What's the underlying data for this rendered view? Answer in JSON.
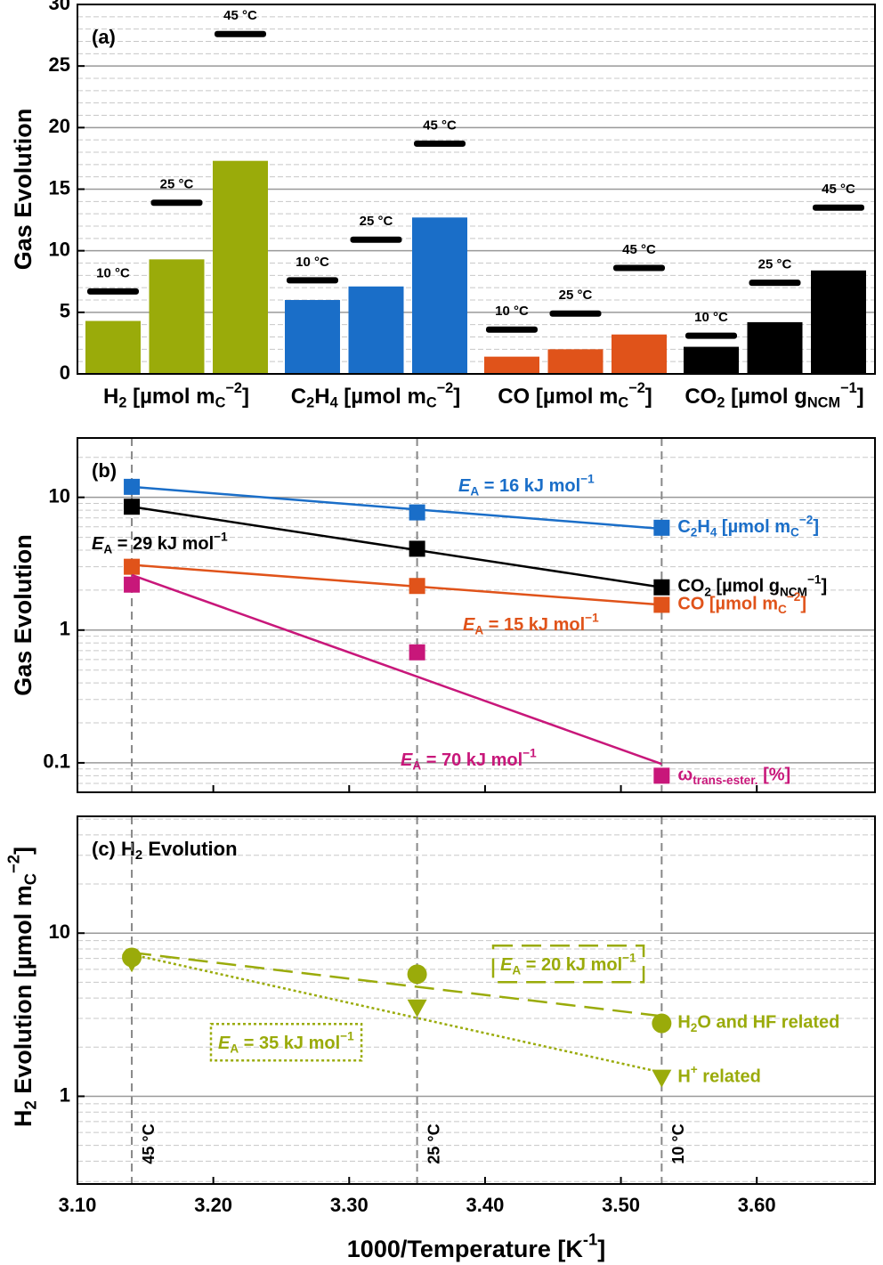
{
  "chart_data": [
    {
      "type": "bar",
      "panel_label": [
        {
          "t": "(a)"
        }
      ],
      "y_label": [
        {
          "t": "Gas Evolution"
        }
      ],
      "ylim": [
        0,
        30
      ],
      "yticks": [
        0,
        5,
        10,
        15,
        20,
        25,
        30
      ],
      "yminor": [
        1,
        2,
        3,
        4,
        6,
        7,
        8,
        9,
        11,
        12,
        13,
        14,
        16,
        17,
        18,
        19,
        21,
        22,
        23,
        24,
        26,
        27,
        28,
        29
      ],
      "grid": true,
      "marker_color": "#000000",
      "groups": [
        {
          "label": [
            {
              "t": "H"
            },
            {
              "t": "2",
              "s": "sub"
            },
            {
              "t": " [µmol m"
            },
            {
              "t": "C",
              "s": "sub"
            },
            {
              "t": "−2",
              "s": "sup"
            },
            {
              "t": "]"
            }
          ],
          "color": "#9aab0a",
          "values": [
            4.3,
            9.3,
            17.3
          ],
          "marker_values": [
            6.7,
            13.9,
            27.6
          ],
          "marker_labels": [
            "10 °C",
            "25 °C",
            "45 °C"
          ]
        },
        {
          "label": [
            {
              "t": "C"
            },
            {
              "t": "2",
              "s": "sub"
            },
            {
              "t": "H"
            },
            {
              "t": "4",
              "s": "sub"
            },
            {
              "t": " [µmol m"
            },
            {
              "t": "C",
              "s": "sub"
            },
            {
              "t": "−2",
              "s": "sup"
            },
            {
              "t": "]"
            }
          ],
          "color": "#1a6ec8",
          "values": [
            6.0,
            7.1,
            12.7
          ],
          "marker_values": [
            7.6,
            10.9,
            18.7
          ],
          "marker_labels": [
            "10 °C",
            "25 °C",
            "45 °C"
          ]
        },
        {
          "label": [
            {
              "t": "CO [µmol m"
            },
            {
              "t": "C",
              "s": "sub"
            },
            {
              "t": "−2",
              "s": "sup"
            },
            {
              "t": "]"
            }
          ],
          "color": "#e0531a",
          "values": [
            1.4,
            2.0,
            3.2
          ],
          "marker_values": [
            3.6,
            4.9,
            8.6
          ],
          "marker_labels": [
            "10 °C",
            "25 °C",
            "45 °C"
          ]
        },
        {
          "label": [
            {
              "t": "CO"
            },
            {
              "t": "2",
              "s": "sub"
            },
            {
              "t": " [µmol g"
            },
            {
              "t": "NCM",
              "s": "sub"
            },
            {
              "t": "−1",
              "s": "sup"
            },
            {
              "t": "]"
            }
          ],
          "color": "#000000",
          "values": [
            2.2,
            4.2,
            8.4
          ],
          "marker_values": [
            3.1,
            7.4,
            13.5
          ],
          "marker_labels": [
            "10 °C",
            "25 °C",
            "45 °C"
          ]
        }
      ]
    },
    {
      "type": "line",
      "panel_label": [
        {
          "t": "(b)"
        }
      ],
      "y_label": [
        {
          "t": "Gas Evolution"
        }
      ],
      "log_scale": true,
      "ylim": [
        0.06,
        28
      ],
      "yticks": [
        0.1,
        1,
        10
      ],
      "yminor": [
        0.06,
        0.07,
        0.08,
        0.09,
        0.2,
        0.3,
        0.4,
        0.5,
        0.6,
        0.7,
        0.8,
        0.9,
        2,
        3,
        4,
        5,
        6,
        7,
        8,
        9,
        20
      ],
      "xlim": [
        3.1,
        3.687
      ],
      "xticks": [
        3.1,
        3.2,
        3.3,
        3.4,
        3.5,
        3.6
      ],
      "x": [
        3.14,
        3.35,
        3.53
      ],
      "grid": true,
      "marker": "square",
      "series": [
        {
          "name": [
            {
              "t": "C"
            },
            {
              "t": "2",
              "s": "sub"
            },
            {
              "t": "H"
            },
            {
              "t": "4",
              "s": "sub"
            },
            {
              "t": " [µmol m"
            },
            {
              "t": "C",
              "s": "sub"
            },
            {
              "t": "−2",
              "s": "sup"
            },
            {
              "t": "]"
            }
          ],
          "color": "#1a6ec8",
          "values": [
            12,
            7.7,
            5.9
          ],
          "fit": [
            12,
            8.1,
            5.8
          ],
          "annotation": [
            {
              "t": "E",
              "s": "i"
            },
            {
              "t": "A",
              "s": "sub"
            },
            {
              "t": " = 16 kJ mol"
            },
            {
              "t": "−1",
              "s": "sup"
            }
          ]
        },
        {
          "name": [
            {
              "t": "CO"
            },
            {
              "t": "2",
              "s": "sub"
            },
            {
              "t": " [µmol g"
            },
            {
              "t": "NCM",
              "s": "sub"
            },
            {
              "t": "−1",
              "s": "sup"
            },
            {
              "t": "]"
            }
          ],
          "color": "#000000",
          "values": [
            8.5,
            4.1,
            2.1
          ],
          "fit": [
            8.5,
            4.0,
            2.1
          ],
          "annotation": [
            {
              "t": "E",
              "s": "i"
            },
            {
              "t": "A",
              "s": "sub"
            },
            {
              "t": " = 29 kJ mol"
            },
            {
              "t": "−1",
              "s": "sup"
            }
          ]
        },
        {
          "name": [
            {
              "t": "CO [µmol m"
            },
            {
              "t": "C",
              "s": "sub"
            },
            {
              "t": "−2",
              "s": "sup"
            },
            {
              "t": "]"
            }
          ],
          "color": "#e0531a",
          "values": [
            3.0,
            2.15,
            1.55
          ],
          "fit": [
            3.1,
            2.13,
            1.55
          ],
          "annotation": [
            {
              "t": "E",
              "s": "i"
            },
            {
              "t": "A",
              "s": "sub"
            },
            {
              "t": " = 15 kJ mol"
            },
            {
              "t": "−1",
              "s": "sup"
            }
          ]
        },
        {
          "name": [
            {
              "t": "ω"
            },
            {
              "t": "trans-ester.",
              "s": "sub"
            },
            {
              "t": " [%]"
            }
          ],
          "color": "#c8177a",
          "values": [
            2.2,
            0.68,
            0.08
          ],
          "fit": [
            2.6,
            0.446,
            0.098
          ],
          "annotation": [
            {
              "t": "E",
              "s": "i"
            },
            {
              "t": "A",
              "s": "sub"
            },
            {
              "t": " = 70 kJ mol"
            },
            {
              "t": "−1",
              "s": "sup"
            }
          ]
        }
      ]
    },
    {
      "type": "line",
      "panel_label": [
        {
          "t": "(c) H"
        },
        {
          "t": "2",
          "s": "sub"
        },
        {
          "t": " Evolution"
        }
      ],
      "y_label": [
        {
          "t": "H"
        },
        {
          "t": "2",
          "s": "sub"
        },
        {
          "t": " Evolution [µmol m"
        },
        {
          "t": "C",
          "s": "sub"
        },
        {
          "t": "−2",
          "s": "sup"
        },
        {
          "t": "]"
        }
      ],
      "x_label": [
        {
          "t": "1000/Temperature [K"
        },
        {
          "t": "-1",
          "s": "sup"
        },
        {
          "t": "]"
        }
      ],
      "log_scale": true,
      "ylim": [
        0.29,
        52
      ],
      "yticks": [
        1,
        10
      ],
      "yminor": [
        0.3,
        0.4,
        0.5,
        0.6,
        0.7,
        0.8,
        0.9,
        2,
        3,
        4,
        5,
        6,
        7,
        8,
        9,
        20,
        30,
        40,
        50
      ],
      "xlim": [
        3.1,
        3.687
      ],
      "xticks": [
        {
          "value": 3.1,
          "label": "3.10"
        },
        {
          "value": 3.2,
          "label": "3.20"
        },
        {
          "value": 3.3,
          "label": "3.30"
        },
        {
          "value": 3.4,
          "label": "3.40"
        },
        {
          "value": 3.5,
          "label": "3.50"
        },
        {
          "value": 3.6,
          "label": "3.60"
        }
      ],
      "x": [
        3.14,
        3.35,
        3.53
      ],
      "temperature_labels": [
        "45 °C",
        "25 °C",
        "10 °C"
      ],
      "grid": true,
      "series": [
        {
          "name": [
            {
              "t": "H"
            },
            {
              "t": "2",
              "s": "sub"
            },
            {
              "t": "O and HF related"
            }
          ],
          "color": "#9aab0a",
          "marker": "circle",
          "line_style": "dashed",
          "values": [
            7.1,
            5.6,
            2.8
          ],
          "fit": [
            7.6,
            4.69,
            3.1
          ],
          "annotation": [
            {
              "t": "E",
              "s": "i"
            },
            {
              "t": "A",
              "s": "sub"
            },
            {
              "t": " = 20 kJ mol"
            },
            {
              "t": "−1",
              "s": "sup"
            }
          ]
        },
        {
          "name": [
            {
              "t": "H"
            },
            {
              "t": "+",
              "s": "sup"
            },
            {
              "t": " related"
            }
          ],
          "color": "#9aab0a",
          "marker": "triangle-down",
          "line_style": "dotted",
          "values": [
            6.6,
            3.5,
            1.3
          ],
          "fit": [
            7.4,
            3.02,
            1.4
          ],
          "annotation": [
            {
              "t": "E",
              "s": "i"
            },
            {
              "t": "A",
              "s": "sub"
            },
            {
              "t": " = 35 kJ mol"
            },
            {
              "t": "−1",
              "s": "sup"
            }
          ]
        }
      ]
    }
  ]
}
